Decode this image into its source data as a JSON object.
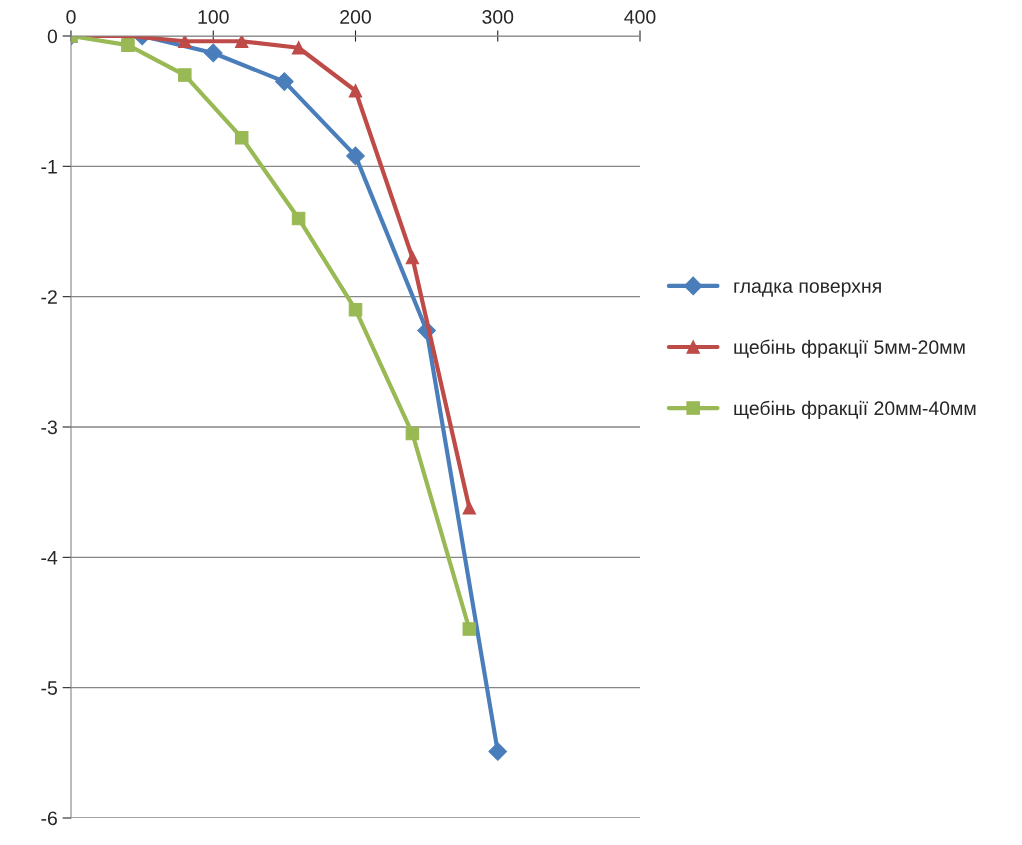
{
  "chart_data": {
    "type": "line",
    "xlim": [
      0,
      400
    ],
    "xticks": [
      0,
      100,
      200,
      300,
      400
    ],
    "ylim": [
      -6,
      0
    ],
    "yticks": [
      -6,
      -5,
      -4,
      -3,
      -2,
      -1,
      0
    ],
    "grid": "y",
    "legend": "right",
    "series": [
      {
        "name": "гладка поверхня",
        "color": "#4a7ebb",
        "marker": "diamond",
        "x": [
          0,
          50,
          100,
          150,
          200,
          250,
          300
        ],
        "values": [
          0,
          0,
          -0.13,
          -0.35,
          -0.92,
          -2.26,
          -5.49
        ]
      },
      {
        "name": "щебінь фракції 5мм-20мм",
        "color": "#be4b48",
        "marker": "triangle",
        "x": [
          0,
          40,
          80,
          120,
          160,
          200,
          240,
          280
        ],
        "values": [
          0,
          0,
          -0.04,
          -0.04,
          -0.09,
          -0.42,
          -1.7,
          -3.62
        ]
      },
      {
        "name": "щебінь фракції 20мм-40мм",
        "color": "#98b954",
        "marker": "square",
        "x": [
          0,
          40,
          80,
          120,
          160,
          200,
          240,
          280
        ],
        "values": [
          0,
          -0.07,
          -0.3,
          -0.78,
          -1.4,
          -2.1,
          -3.05,
          -4.55
        ]
      }
    ]
  }
}
